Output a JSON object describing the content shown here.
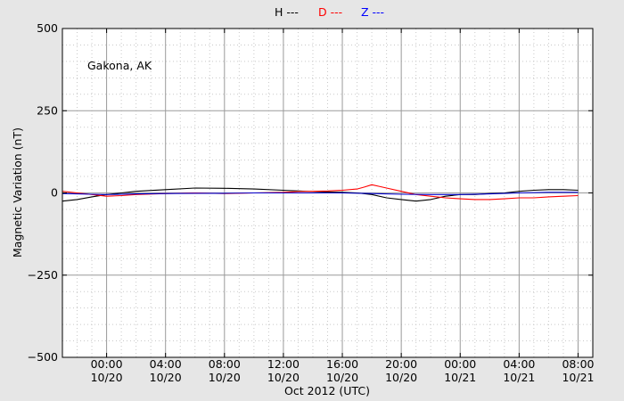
{
  "chart_data": {
    "type": "line",
    "legend": [
      {
        "label": "H ---",
        "color": "#000000"
      },
      {
        "label": "D ---",
        "color": "#ff0000"
      },
      {
        "label": "Z ---",
        "color": "#0000ff"
      }
    ],
    "legend_position": "top-center",
    "annotation": "Gakona, AK",
    "xlabel": "Oct 2012 (UTC)",
    "ylabel": "Magnetic Variation (nT)",
    "ylim": [
      -500,
      500
    ],
    "xlim_hours": [
      -3,
      33
    ],
    "y_ticks": [
      {
        "value": 500,
        "label": "500"
      },
      {
        "value": 250,
        "label": "250"
      },
      {
        "value": 0,
        "label": "0"
      },
      {
        "value": -250,
        "label": "−250"
      },
      {
        "value": -500,
        "label": "−500"
      }
    ],
    "x_ticks": [
      {
        "hour": 0,
        "time": "00:00",
        "date": "10/20"
      },
      {
        "hour": 4,
        "time": "04:00",
        "date": "10/20"
      },
      {
        "hour": 8,
        "time": "08:00",
        "date": "10/20"
      },
      {
        "hour": 12,
        "time": "12:00",
        "date": "10/20"
      },
      {
        "hour": 16,
        "time": "16:00",
        "date": "10/20"
      },
      {
        "hour": 20,
        "time": "20:00",
        "date": "10/20"
      },
      {
        "hour": 24,
        "time": "00:00",
        "date": "10/21"
      },
      {
        "hour": 28,
        "time": "04:00",
        "date": "10/21"
      },
      {
        "hour": 32,
        "time": "08:00",
        "date": "10/21"
      }
    ],
    "grid": true,
    "series": [
      {
        "name": "H",
        "color": "#000000",
        "x": [
          -3,
          -2,
          -1,
          0,
          1,
          2,
          4,
          6,
          8,
          10,
          12,
          13,
          14,
          15,
          16,
          17,
          18,
          19,
          20,
          21,
          22,
          23,
          24,
          25,
          26,
          27,
          28,
          29,
          30,
          31,
          32
        ],
        "y": [
          -25,
          -20,
          -12,
          -5,
          0,
          5,
          10,
          15,
          14,
          12,
          8,
          6,
          4,
          3,
          2,
          0,
          -5,
          -15,
          -20,
          -25,
          -20,
          -10,
          -5,
          -5,
          -2,
          0,
          5,
          8,
          10,
          10,
          8
        ]
      },
      {
        "name": "D",
        "color": "#ff0000",
        "x": [
          -3,
          -2,
          -1,
          0,
          1,
          2,
          4,
          6,
          8,
          10,
          12,
          13,
          14,
          15,
          16,
          17,
          17.5,
          18,
          18.5,
          19,
          20,
          21,
          22,
          23,
          24,
          25,
          26,
          27,
          28,
          29,
          30,
          31,
          32
        ],
        "y": [
          5,
          0,
          -5,
          -10,
          -8,
          -5,
          -2,
          0,
          -2,
          0,
          2,
          4,
          5,
          6,
          8,
          12,
          18,
          25,
          20,
          15,
          5,
          -5,
          -10,
          -15,
          -18,
          -20,
          -20,
          -18,
          -15,
          -15,
          -12,
          -10,
          -8
        ]
      },
      {
        "name": "Z",
        "color": "#0000cc",
        "x": [
          -3,
          -2,
          -1,
          0,
          2,
          4,
          6,
          8,
          10,
          12,
          14,
          16,
          18,
          20,
          22,
          24,
          26,
          28,
          30,
          32
        ],
        "y": [
          -2,
          -3,
          -4,
          -5,
          -3,
          -2,
          -1,
          -1,
          0,
          0,
          0,
          0,
          -2,
          -4,
          -5,
          -5,
          -3,
          0,
          2,
          2
        ]
      }
    ]
  }
}
